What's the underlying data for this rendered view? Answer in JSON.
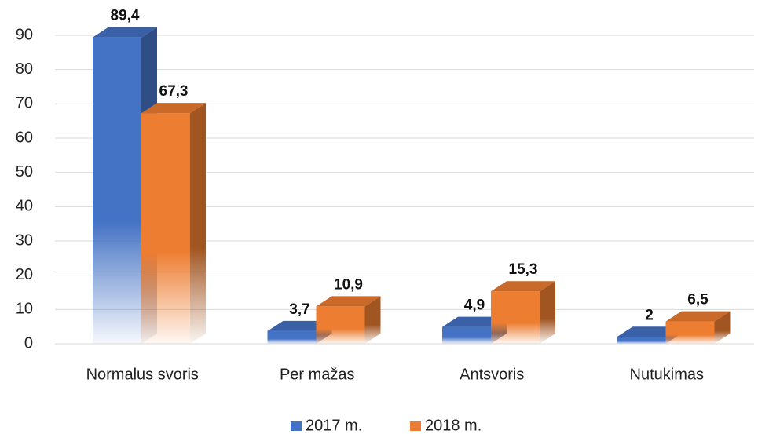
{
  "chart_data": {
    "type": "bar3d",
    "categories": [
      "Normalus svoris",
      "Per mažas",
      "Antsvoris",
      "Nutukimas"
    ],
    "series": [
      {
        "name": "2017 m.",
        "color": "#4472c4",
        "values": [
          89.4,
          3.7,
          4.9,
          2
        ],
        "value_labels": [
          "89,4",
          "3,7",
          "4,9",
          "2"
        ]
      },
      {
        "name": "2018 m.",
        "color": "#ed7d31",
        "values": [
          67.3,
          10.9,
          15.3,
          6.5
        ],
        "value_labels": [
          "67,3",
          "10,9",
          "15,3",
          "6,5"
        ]
      }
    ],
    "ylim": [
      0,
      90
    ],
    "yticks": [
      0,
      10,
      20,
      30,
      40,
      50,
      60,
      70,
      80,
      90
    ],
    "grid": true,
    "legend": "bottom"
  }
}
